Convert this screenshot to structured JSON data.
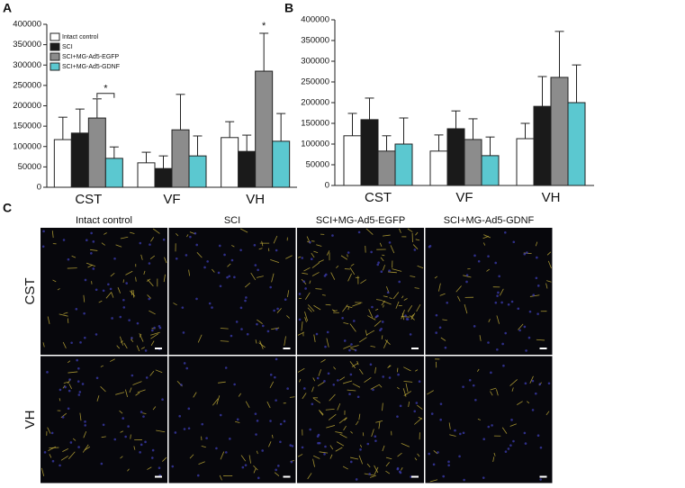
{
  "panel_labels": [
    "A",
    "B",
    "C"
  ],
  "chart_data": [
    {
      "type": "bar",
      "categories": [
        "CST",
        "VF",
        "VH"
      ],
      "ylim": [
        0,
        400000
      ],
      "yticks": [
        0,
        50000,
        100000,
        150000,
        200000,
        250000,
        300000,
        350000,
        400000
      ],
      "legend": "upper left",
      "series": [
        {
          "name": "Intact control",
          "color": "#ffffff",
          "values": [
            117000,
            60000,
            122000
          ],
          "errors": [
            55000,
            26000,
            39000
          ]
        },
        {
          "name": "SCI",
          "color": "#1a1a1a",
          "values": [
            133000,
            46000,
            88000
          ],
          "errors": [
            59000,
            31000,
            40000
          ]
        },
        {
          "name": "SCI+MG-Ad5-EGFP",
          "color": "#8c8c8c",
          "values": [
            170000,
            141000,
            285000
          ],
          "errors": [
            47000,
            87000,
            93000
          ]
        },
        {
          "name": "SCI+MG-Ad5-GDNF",
          "color": "#5bc8d0",
          "values": [
            71000,
            77000,
            113000
          ],
          "errors": [
            28000,
            49000,
            68000
          ]
        }
      ],
      "annotations": [
        "*",
        "*"
      ]
    },
    {
      "type": "bar",
      "categories": [
        "CST",
        "VF",
        "VH"
      ],
      "ylim": [
        0,
        400000
      ],
      "yticks": [
        0,
        50000,
        100000,
        150000,
        200000,
        250000,
        300000,
        350000,
        400000
      ],
      "series": [
        {
          "color": "#ffffff",
          "values": [
            120000,
            83000,
            113000
          ],
          "errors": [
            54000,
            39000,
            37000
          ]
        },
        {
          "color": "#1a1a1a",
          "values": [
            159000,
            137000,
            191000
          ],
          "errors": [
            52000,
            43000,
            72000
          ]
        },
        {
          "color": "#8c8c8c",
          "values": [
            83000,
            111000,
            261000
          ],
          "errors": [
            37000,
            50000,
            111000
          ]
        },
        {
          "color": "#5bc8d0",
          "values": [
            100000,
            72000,
            200000
          ],
          "errors": [
            63000,
            45000,
            91000
          ]
        }
      ]
    }
  ],
  "panel_c": {
    "columns": [
      "Intact control",
      "SCI",
      "SCI+MG-Ad5-EGFP",
      "SCI+MG-Ad5-GDNF"
    ],
    "rows": [
      "CST",
      "VH"
    ]
  }
}
